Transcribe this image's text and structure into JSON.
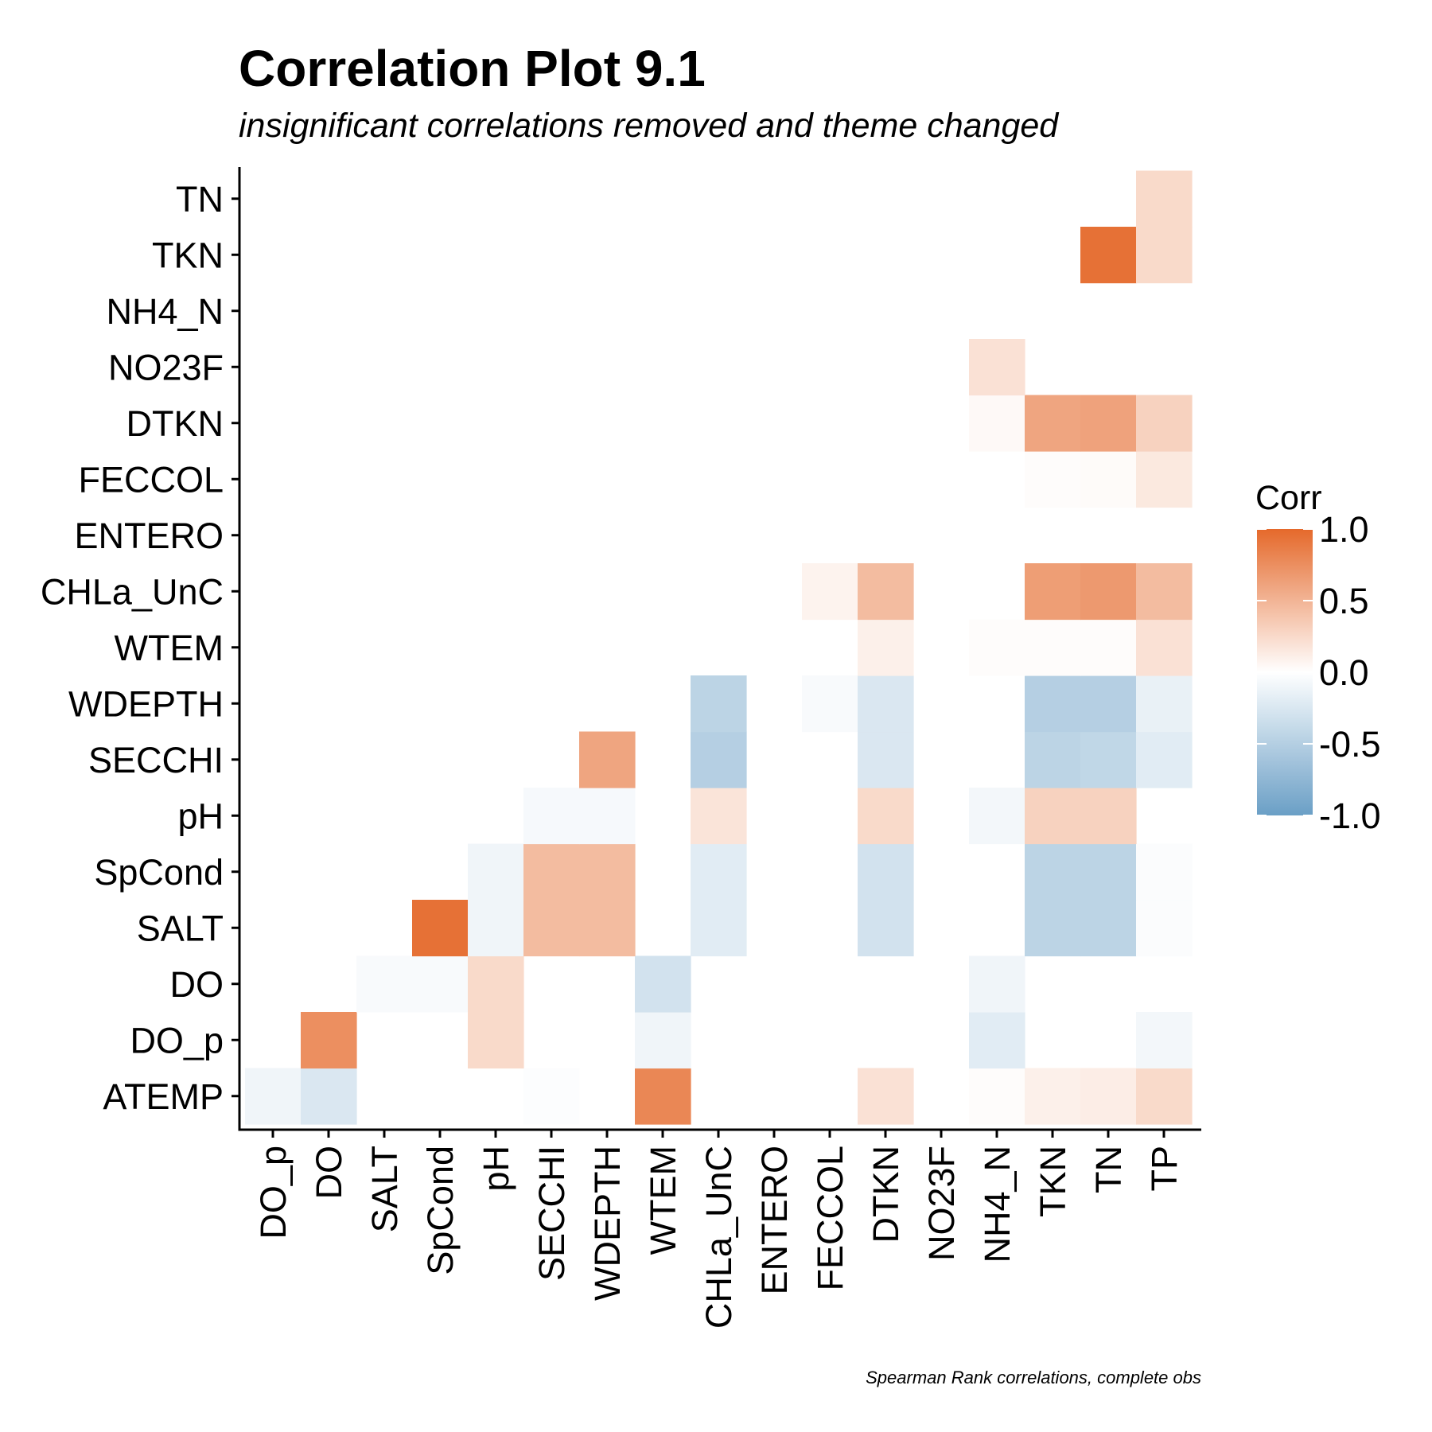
{
  "chart_data": {
    "type": "heatmap",
    "title": "Correlation Plot 9.1",
    "subtitle": "insignificant correlations removed and theme changed",
    "caption": "Spearman Rank correlations, complete obs",
    "x_categories": [
      "DO_p",
      "DO",
      "SALT",
      "SpCond",
      "pH",
      "SECCHI",
      "WDEPTH",
      "WTEM",
      "CHLa_UnC",
      "ENTERO",
      "FECCOL",
      "DTKN",
      "NO23F",
      "NH4_N",
      "TKN",
      "TN",
      "TP"
    ],
    "y_categories": [
      "ATEMP",
      "DO_p",
      "DO",
      "SALT",
      "SpCond",
      "pH",
      "SECCHI",
      "WDEPTH",
      "WTEM",
      "CHLa_UnC",
      "ENTERO",
      "FECCOL",
      "DTKN",
      "NO23F",
      "NH4_N",
      "TKN",
      "TN"
    ],
    "cells": [
      {
        "x": "DO_p",
        "y": "ATEMP",
        "value": -0.1
      },
      {
        "x": "DO",
        "y": "ATEMP",
        "value": -0.25
      },
      {
        "x": "SECCHI",
        "y": "ATEMP",
        "value": -0.02
      },
      {
        "x": "WTEM",
        "y": "ATEMP",
        "value": 0.8
      },
      {
        "x": "DTKN",
        "y": "ATEMP",
        "value": 0.2
      },
      {
        "x": "NH4_N",
        "y": "ATEMP",
        "value": 0.02
      },
      {
        "x": "TKN",
        "y": "ATEMP",
        "value": 0.1
      },
      {
        "x": "TN",
        "y": "ATEMP",
        "value": 0.12
      },
      {
        "x": "TP",
        "y": "ATEMP",
        "value": 0.25
      },
      {
        "x": "DO",
        "y": "DO_p",
        "value": 0.75
      },
      {
        "x": "pH",
        "y": "DO_p",
        "value": 0.25
      },
      {
        "x": "WTEM",
        "y": "DO_p",
        "value": -0.1
      },
      {
        "x": "NH4_N",
        "y": "DO_p",
        "value": -0.2
      },
      {
        "x": "TP",
        "y": "DO_p",
        "value": -0.08
      },
      {
        "x": "SALT",
        "y": "DO",
        "value": -0.05
      },
      {
        "x": "SpCond",
        "y": "DO",
        "value": -0.05
      },
      {
        "x": "pH",
        "y": "DO",
        "value": 0.25
      },
      {
        "x": "WTEM",
        "y": "DO",
        "value": -0.3
      },
      {
        "x": "NH4_N",
        "y": "DO",
        "value": -0.1
      },
      {
        "x": "SpCond",
        "y": "SALT",
        "value": 0.95
      },
      {
        "x": "pH",
        "y": "SALT",
        "value": -0.1
      },
      {
        "x": "SECCHI",
        "y": "SALT",
        "value": 0.45
      },
      {
        "x": "WDEPTH",
        "y": "SALT",
        "value": 0.45
      },
      {
        "x": "CHLa_UnC",
        "y": "SALT",
        "value": -0.2
      },
      {
        "x": "DTKN",
        "y": "SALT",
        "value": -0.3
      },
      {
        "x": "TKN",
        "y": "SALT",
        "value": -0.45
      },
      {
        "x": "TN",
        "y": "SALT",
        "value": -0.45
      },
      {
        "x": "TP",
        "y": "SALT",
        "value": -0.03
      },
      {
        "x": "pH",
        "y": "SpCond",
        "value": -0.1
      },
      {
        "x": "SECCHI",
        "y": "SpCond",
        "value": 0.45
      },
      {
        "x": "WDEPTH",
        "y": "SpCond",
        "value": 0.45
      },
      {
        "x": "CHLa_UnC",
        "y": "SpCond",
        "value": -0.2
      },
      {
        "x": "DTKN",
        "y": "SpCond",
        "value": -0.3
      },
      {
        "x": "TKN",
        "y": "SpCond",
        "value": -0.45
      },
      {
        "x": "TN",
        "y": "SpCond",
        "value": -0.45
      },
      {
        "x": "TP",
        "y": "SpCond",
        "value": -0.03
      },
      {
        "x": "SECCHI",
        "y": "pH",
        "value": -0.06
      },
      {
        "x": "WDEPTH",
        "y": "pH",
        "value": -0.06
      },
      {
        "x": "CHLa_UnC",
        "y": "pH",
        "value": 0.18
      },
      {
        "x": "DTKN",
        "y": "pH",
        "value": 0.25
      },
      {
        "x": "NH4_N",
        "y": "pH",
        "value": -0.08
      },
      {
        "x": "TKN",
        "y": "pH",
        "value": 0.3
      },
      {
        "x": "TN",
        "y": "pH",
        "value": 0.3
      },
      {
        "x": "WDEPTH",
        "y": "SECCHI",
        "value": 0.6
      },
      {
        "x": "CHLa_UnC",
        "y": "SECCHI",
        "value": -0.5
      },
      {
        "x": "DTKN",
        "y": "SECCHI",
        "value": -0.25
      },
      {
        "x": "TKN",
        "y": "SECCHI",
        "value": -0.45
      },
      {
        "x": "TN",
        "y": "SECCHI",
        "value": -0.42
      },
      {
        "x": "TP",
        "y": "SECCHI",
        "value": -0.2
      },
      {
        "x": "CHLa_UnC",
        "y": "WDEPTH",
        "value": -0.45
      },
      {
        "x": "FECCOL",
        "y": "WDEPTH",
        "value": -0.05
      },
      {
        "x": "DTKN",
        "y": "WDEPTH",
        "value": -0.25
      },
      {
        "x": "TKN",
        "y": "WDEPTH",
        "value": -0.5
      },
      {
        "x": "TN",
        "y": "WDEPTH",
        "value": -0.5
      },
      {
        "x": "TP",
        "y": "WDEPTH",
        "value": -0.15
      },
      {
        "x": "DTKN",
        "y": "WTEM",
        "value": 0.1
      },
      {
        "x": "NH4_N",
        "y": "WTEM",
        "value": 0.02
      },
      {
        "x": "TKN",
        "y": "WTEM",
        "value": 0.02
      },
      {
        "x": "TN",
        "y": "WTEM",
        "value": 0.02
      },
      {
        "x": "TP",
        "y": "WTEM",
        "value": 0.2
      },
      {
        "x": "FECCOL",
        "y": "CHLa_UnC",
        "value": 0.08
      },
      {
        "x": "DTKN",
        "y": "CHLa_UnC",
        "value": 0.45
      },
      {
        "x": "TKN",
        "y": "CHLa_UnC",
        "value": 0.65
      },
      {
        "x": "TN",
        "y": "CHLa_UnC",
        "value": 0.68
      },
      {
        "x": "TP",
        "y": "CHLa_UnC",
        "value": 0.45
      },
      {
        "x": "TKN",
        "y": "FECCOL",
        "value": 0.02
      },
      {
        "x": "TN",
        "y": "FECCOL",
        "value": 0.03
      },
      {
        "x": "TP",
        "y": "FECCOL",
        "value": 0.15
      },
      {
        "x": "NH4_N",
        "y": "DTKN",
        "value": 0.04
      },
      {
        "x": "TKN",
        "y": "DTKN",
        "value": 0.6
      },
      {
        "x": "TN",
        "y": "DTKN",
        "value": 0.62
      },
      {
        "x": "TP",
        "y": "DTKN",
        "value": 0.3
      },
      {
        "x": "NH4_N",
        "y": "NO23F",
        "value": 0.2
      },
      {
        "x": "TN",
        "y": "TKN",
        "value": 0.95
      },
      {
        "x": "TP",
        "y": "TKN",
        "value": 0.25
      },
      {
        "x": "TP",
        "y": "TN",
        "value": 0.25
      }
    ],
    "legend": {
      "title": "Corr",
      "ticks": [
        "1.0",
        "0.5",
        "0.0",
        "-0.5",
        "-1.0"
      ],
      "tick_values": [
        1.0,
        0.5,
        0.0,
        -0.5,
        -1.0
      ],
      "range": [
        -1,
        1
      ]
    },
    "colors": {
      "high": "#E5692B",
      "mid": "#FFFFFF",
      "low": "#6A9FC6"
    }
  }
}
